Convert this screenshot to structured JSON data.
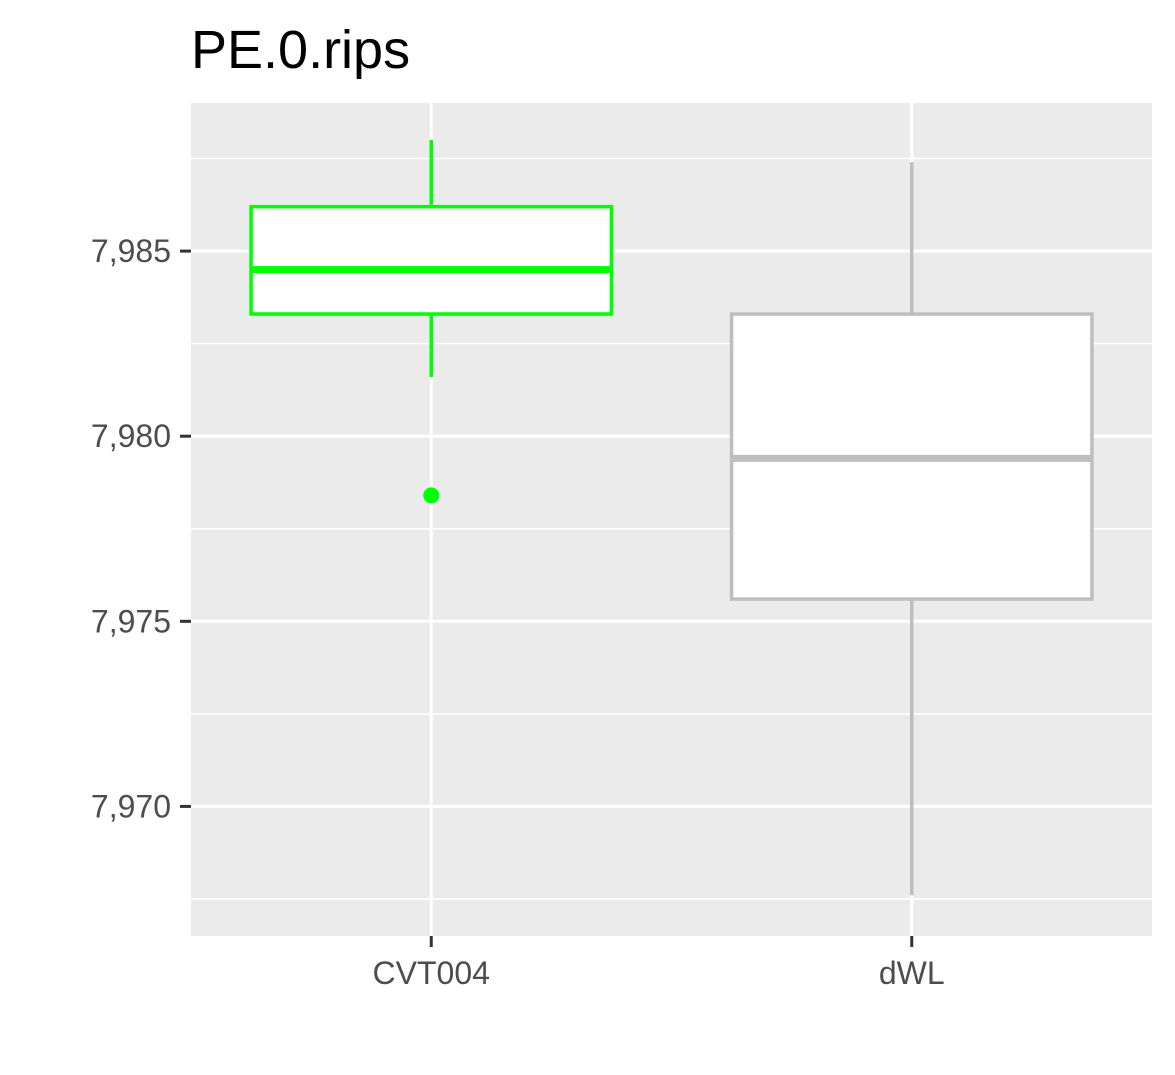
{
  "chart_data": {
    "type": "box",
    "title": "PE.0.rips",
    "xlabel": "",
    "ylabel": "",
    "categories": [
      "CVT004",
      "dWL"
    ],
    "ylim": [
      7.9665,
      7.989
    ],
    "y_ticks": [
      7.97,
      7.975,
      7.98,
      7.985
    ],
    "y_tick_labels": [
      "7,970",
      "7,975",
      "7,980",
      "7,985"
    ],
    "grid": true,
    "legend": "none",
    "background": "#ebebeb",
    "boxes": [
      {
        "category": "CVT004",
        "color": "#00ff00",
        "whisker_low": 7.9816,
        "q1": 7.9833,
        "median": 7.9845,
        "q3": 7.9862,
        "whisker_high": 7.988,
        "outliers": [
          7.9784
        ]
      },
      {
        "category": "dWL",
        "color": "#bebebe",
        "whisker_low": 7.9676,
        "q1": 7.9756,
        "median": 7.9794,
        "q3": 7.9833,
        "whisker_high": 7.9874,
        "outliers": []
      }
    ]
  }
}
